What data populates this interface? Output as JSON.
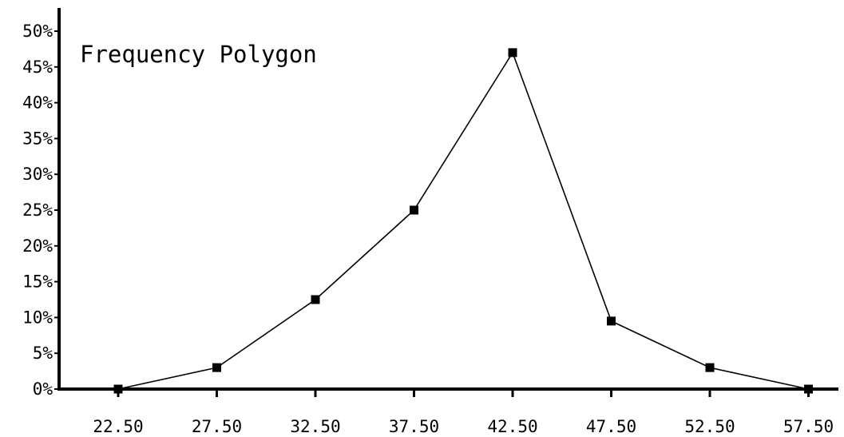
{
  "chart_data": {
    "type": "line",
    "title": "Frequency Polygon",
    "xlabel": "",
    "ylabel": "",
    "x": [
      "22.50",
      "27.50",
      "32.50",
      "37.50",
      "42.50",
      "47.50",
      "52.50",
      "57.50"
    ],
    "series": [
      {
        "values": [
          0,
          3,
          12.5,
          25,
          47,
          9.5,
          3,
          0
        ]
      }
    ],
    "ylim": [
      0,
      50
    ],
    "y_ticks": [
      "0%",
      "5%",
      "10%",
      "15%",
      "20%",
      "25%",
      "30%",
      "35%",
      "40%",
      "45%",
      "50%"
    ],
    "grid": false,
    "legend": "none",
    "colors": {
      "line": "#000000",
      "markers": "#000000",
      "axes": "#000000",
      "background": "#ffffff"
    }
  }
}
